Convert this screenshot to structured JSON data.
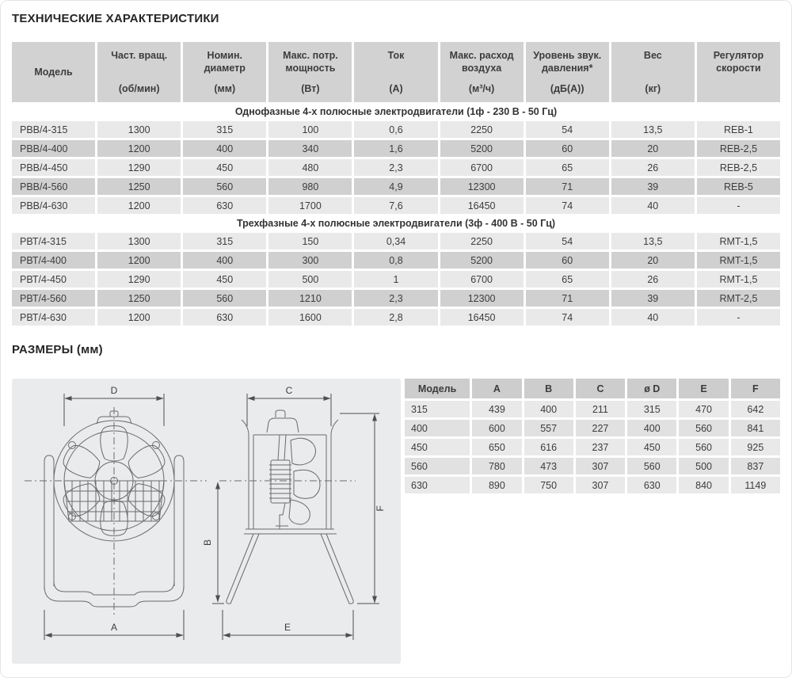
{
  "titles": {
    "tech": "ТЕХНИЧЕСКИЕ ХАРАКТЕРИСТИКИ",
    "dims": "РАЗМЕРЫ (мм)"
  },
  "colors": {
    "header_bg": "#d2d2d2",
    "row_light": "#e9e9e9",
    "row_dark": "#d0d0d0",
    "panel_bg": "#e9ebec"
  },
  "spec_table": {
    "headers": [
      {
        "name": "Модель",
        "unit": ""
      },
      {
        "name": "Част. вращ.",
        "unit": "(об/мин)"
      },
      {
        "name": "Номин. диаметр",
        "unit": "(мм)"
      },
      {
        "name": "Макс. потр. мощность",
        "unit": "(Вт)"
      },
      {
        "name": "Ток",
        "unit": "(А)"
      },
      {
        "name": "Макс. расход воздуха",
        "unit": "(м³/ч)"
      },
      {
        "name": "Уровень звук. давления*",
        "unit": "(дБ(А))"
      },
      {
        "name": "Вес",
        "unit": "(кг)"
      },
      {
        "name": "Регулятор скорости",
        "unit": ""
      }
    ],
    "sections": [
      {
        "title": "Однофазные 4-х полюсные электродвигатели (1ф - 230 В - 50 Гц)",
        "rows": [
          [
            "РВВ/4-315",
            "1300",
            "315",
            "100",
            "0,6",
            "2250",
            "54",
            "13,5",
            "REB-1"
          ],
          [
            "РВВ/4-400",
            "1200",
            "400",
            "340",
            "1,6",
            "5200",
            "60",
            "20",
            "REB-2,5"
          ],
          [
            "РВВ/4-450",
            "1290",
            "450",
            "480",
            "2,3",
            "6700",
            "65",
            "26",
            "REB-2,5"
          ],
          [
            "РВВ/4-560",
            "1250",
            "560",
            "980",
            "4,9",
            "12300",
            "71",
            "39",
            "REB-5"
          ],
          [
            "РВВ/4-630",
            "1200",
            "630",
            "1700",
            "7,6",
            "16450",
            "74",
            "40",
            "-"
          ]
        ]
      },
      {
        "title": "Трехфазные 4-х полюсные электродвигатели (3ф - 400 В - 50 Гц)",
        "rows": [
          [
            "РВТ/4-315",
            "1300",
            "315",
            "150",
            "0,34",
            "2250",
            "54",
            "13,5",
            "RMT-1,5"
          ],
          [
            "РВТ/4-400",
            "1200",
            "400",
            "300",
            "0,8",
            "5200",
            "60",
            "20",
            "RMT-1,5"
          ],
          [
            "РВТ/4-450",
            "1290",
            "450",
            "500",
            "1",
            "6700",
            "65",
            "26",
            "RMT-1,5"
          ],
          [
            "РВТ/4-560",
            "1250",
            "560",
            "1210",
            "2,3",
            "12300",
            "71",
            "39",
            "RMT-2,5"
          ],
          [
            "РВТ/4-630",
            "1200",
            "630",
            "1600",
            "2,8",
            "16450",
            "74",
            "40",
            "-"
          ]
        ]
      }
    ]
  },
  "dims_table": {
    "headers": [
      "Модель",
      "A",
      "B",
      "C",
      "ø D",
      "E",
      "F"
    ],
    "rows": [
      [
        "315",
        "439",
        "400",
        "211",
        "315",
        "470",
        "642"
      ],
      [
        "400",
        "600",
        "557",
        "227",
        "400",
        "560",
        "841"
      ],
      [
        "450",
        "650",
        "616",
        "237",
        "450",
        "560",
        "925"
      ],
      [
        "560",
        "780",
        "473",
        "307",
        "560",
        "500",
        "837"
      ],
      [
        "630",
        "890",
        "750",
        "307",
        "630",
        "840",
        "1149"
      ]
    ]
  },
  "drawing": {
    "labels": {
      "d": "D",
      "a": "A",
      "b": "B",
      "c": "C",
      "e": "E",
      "f": "F"
    }
  }
}
